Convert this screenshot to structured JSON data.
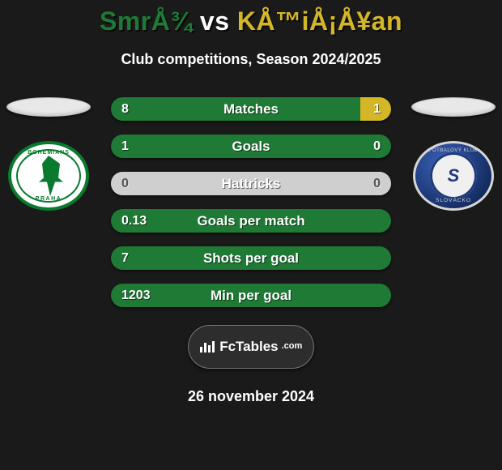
{
  "accent_left": "#1e7a34",
  "accent_right": "#d4b727",
  "footer_bg": "#2d2d2d",
  "title_parts": {
    "p1": "SmrÅ¾",
    "vs": "vs",
    "p2": "KÅ™iÅ¡Å¥an"
  },
  "subtitle": "Club competitions, Season 2024/2025",
  "date": "26 november 2024",
  "badge_a": {
    "top": "BOHEMIANS",
    "bottom": "PRAHA"
  },
  "badge_b": {
    "top": "FOTBALOVÝ KLUB",
    "center": "S",
    "bottom": "SLOVÁCKO"
  },
  "brand": {
    "name": "FcTables",
    "suffix": ".com"
  },
  "rows": [
    {
      "label": "Matches",
      "left": "8",
      "right": "1",
      "left_w": 88.9,
      "right_w": 11.1
    },
    {
      "label": "Goals",
      "left": "1",
      "right": "0",
      "left_w": 100,
      "right_w": 0
    },
    {
      "label": "Hattricks",
      "left": "0",
      "right": "0",
      "left_w": 0,
      "right_w": 0
    },
    {
      "label": "Goals per match",
      "left": "0.13",
      "right": "",
      "left_w": 100,
      "right_w": 0
    },
    {
      "label": "Shots per goal",
      "left": "7",
      "right": "",
      "left_w": 100,
      "right_w": 0
    },
    {
      "label": "Min per goal",
      "left": "1203",
      "right": "",
      "left_w": 100,
      "right_w": 0
    }
  ]
}
